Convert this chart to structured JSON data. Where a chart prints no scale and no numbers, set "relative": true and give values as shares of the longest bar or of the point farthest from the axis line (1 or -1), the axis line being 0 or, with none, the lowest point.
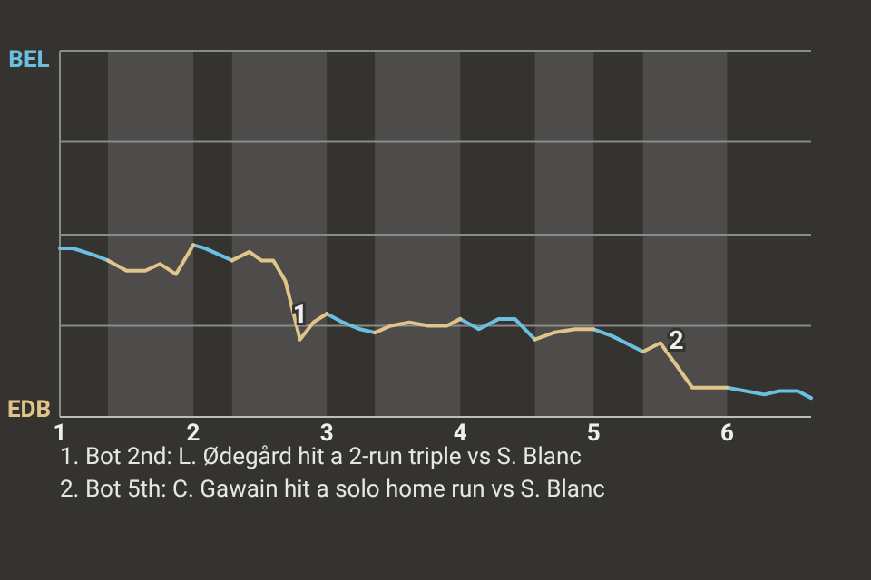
{
  "chart_data": {
    "type": "line",
    "relative": true,
    "x": [
      1.0,
      1.1,
      1.26,
      1.36,
      1.5,
      1.64,
      1.75,
      1.87,
      2.0,
      2.09,
      2.29,
      2.42,
      2.51,
      2.6,
      2.69,
      2.8,
      2.9,
      3.0,
      3.12,
      3.25,
      3.36,
      3.48,
      3.62,
      3.76,
      3.9,
      4.0,
      4.14,
      4.29,
      4.41,
      4.56,
      4.7,
      4.86,
      5.0,
      5.14,
      5.37,
      5.5,
      5.74,
      6.0,
      6.14,
      6.28,
      6.39,
      6.53,
      6.63
    ],
    "series": [
      {
        "name": "BEL",
        "color": "#6bbfe0",
        "values": [
          0.98,
          0.98,
          0.94,
          0.91,
          null,
          null,
          null,
          null,
          1,
          0.98,
          0.91,
          null,
          null,
          null,
          null,
          null,
          null,
          0.6,
          0.55,
          0.51,
          0.49,
          null,
          null,
          null,
          null,
          0.57,
          0.51,
          0.57,
          0.57,
          0.45,
          null,
          null,
          0.51,
          0.47,
          0.38,
          null,
          null,
          0.17,
          0.15,
          0.13,
          0.15,
          0.15,
          0.11
        ]
      },
      {
        "name": "EDB",
        "color": "#e0c48a",
        "values": [
          null,
          null,
          null,
          0.91,
          0.85,
          0.85,
          0.89,
          0.83,
          1,
          null,
          0.91,
          0.96,
          0.91,
          0.91,
          0.79,
          0.45,
          0.55,
          0.6,
          null,
          null,
          0.49,
          0.53,
          0.55,
          0.53,
          0.53,
          0.57,
          null,
          null,
          null,
          0.45,
          0.49,
          0.51,
          0.51,
          null,
          0.38,
          0.43,
          0.17,
          0.17,
          null,
          null,
          null,
          null,
          null
        ]
      }
    ],
    "xlim": [
      1,
      6.63
    ],
    "xticks": [
      1,
      2,
      3,
      4,
      5,
      6
    ],
    "bands": [
      {
        "axis": "x",
        "from": 1.36,
        "to": 2.0,
        "color": "#4d4c4a"
      },
      {
        "axis": "x",
        "from": 2.29,
        "to": 3.0,
        "color": "#4d4c4a"
      },
      {
        "axis": "x",
        "from": 3.36,
        "to": 4.0,
        "color": "#4d4c4a"
      },
      {
        "axis": "x",
        "from": 4.56,
        "to": 5.0,
        "color": "#4d4c4a"
      },
      {
        "axis": "x",
        "from": 5.37,
        "to": 6.0,
        "color": "#4d4c4a"
      }
    ],
    "ref_lines": [
      {
        "axis": "y",
        "value": 0.53,
        "color": "#8a8a8a"
      },
      {
        "axis": "y",
        "value": 1.06,
        "color": "#8a8a8a"
      },
      {
        "axis": "y",
        "value": 1.6,
        "color": "#8a8a8a"
      },
      {
        "axis": "y",
        "value": 2.13,
        "color": "#8a8a8a"
      }
    ],
    "legend": "left",
    "annotations": [
      {
        "text": "1",
        "x": 2.8,
        "y": 0.45
      },
      {
        "text": "2",
        "x": 5.62,
        "y": 0.3
      },
      "1. Bot 2nd: L. Ødegård hit a 2-run triple vs S. Blanc",
      "2. Bot 5th: C. Gawain hit a solo home run vs S. Blanc"
    ]
  }
}
